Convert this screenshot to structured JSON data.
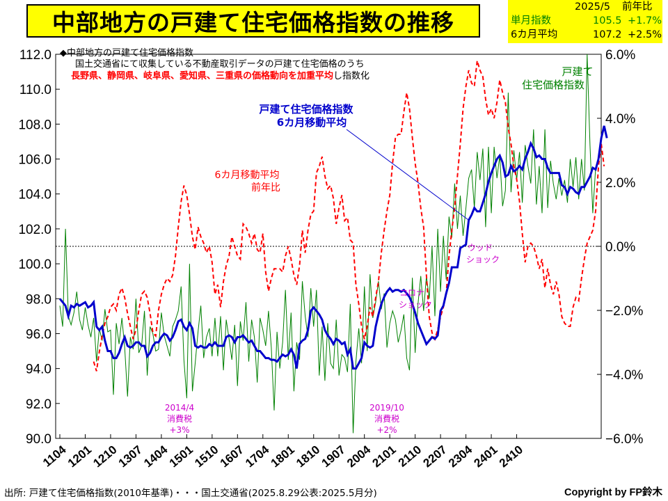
{
  "title": "中部地方の戸建て住宅価格指数の推移",
  "stats": {
    "date": "2025/5",
    "yoy_label": "前年比",
    "monthly_label": "単月指数",
    "monthly_value": "105.5",
    "monthly_yoy": "+1.7%",
    "avg_label": "6カ月平均",
    "avg_value": "107.2",
    "avg_yoy": "+2.5%"
  },
  "notes": {
    "line1": "◆中部地方の戸建て住宅価格指数",
    "line2": "国土交通省にて収集している不動産取引データの戸建て住宅価格のうち",
    "line3_red": "長野県、静岡県、岐阜県、愛知県、三重県の価格動向を加重平均",
    "line3_black": "し指数化"
  },
  "labels": {
    "green_series_1": "戸建て",
    "green_series_2": "住宅価格指数",
    "blue_series_1": "戸建て住宅価格指数",
    "blue_series_2": "6カ月移動平均",
    "red_series_1": "6カ月移動平均",
    "red_series_2": "前年比",
    "wood_1": "ウッド",
    "wood_2": "ショック",
    "corona_1": "コロナ",
    "corona_2": "ショック",
    "tax2014_1": "2014/4",
    "tax2014_2": "消費税",
    "tax2014_3": "+3%",
    "tax2019_1": "2019/10",
    "tax2019_2": "消費税",
    "tax2019_3": "+2%"
  },
  "footer": "出所: 戸建て住宅価格指数(2010年基準)・・・国土交通省(2025.8.29公表:2025.5月分)",
  "copyright": "Copyright by FP鈴木",
  "colors": {
    "title_bg": "#ffff00",
    "monthly": "#008000",
    "moving_avg": "#0000cc",
    "yoy": "#ff0000",
    "annotation": "#cc00cc"
  },
  "chart_data": {
    "type": "line",
    "x_tick_labels": [
      "1104",
      "1201",
      "1210",
      "1307",
      "1404",
      "1501",
      "1510",
      "1607",
      "1704",
      "1801",
      "1810",
      "1907",
      "2004",
      "2101",
      "2110",
      "2207",
      "2304",
      "2401",
      "2410"
    ],
    "x_range": [
      "2011/04",
      "2025/05"
    ],
    "y_left": {
      "range": [
        90.0,
        112.0
      ],
      "ticks": [
        "90.0",
        "92.0",
        "94.0",
        "96.0",
        "98.0",
        "100.0",
        "102.0",
        "104.0",
        "106.0",
        "108.0",
        "110.0",
        "112.0"
      ]
    },
    "y_right": {
      "range": [
        -6.0,
        6.0
      ],
      "ticks": [
        "−6.0%",
        "−4.0%",
        "−2.0%",
        "0.0%",
        "2.0%",
        "4.0%",
        "6.0%"
      ],
      "reference_line": 0.0
    },
    "series": [
      {
        "name": "戸建て住宅価格指数",
        "axis": "left",
        "style": "thin-solid",
        "values": [
          97.6,
          96.4,
          102.0,
          97.0,
          96.5,
          97.2,
          98.4,
          96.8,
          96.2,
          97.5,
          96.5,
          95.8,
          96.9,
          94.4,
          96.3,
          95.6,
          97.4,
          96.1,
          96.2,
          92.5,
          96.6,
          95.4,
          96.9,
          95.2,
          92.4,
          95.8,
          95.1,
          98.0,
          94.9,
          95.3,
          97.3,
          93.6,
          96.4,
          96.0,
          95.0,
          95.1,
          97.2,
          95.9,
          95.3,
          94.7,
          96.4,
          96.8,
          97.3,
          98.7,
          94.5,
          92.3,
          100.0,
          92.7,
          94.3,
          96.1,
          97.6,
          94.6,
          95.8,
          96.3,
          94.7,
          96.9,
          94.7,
          97.0,
          93.9,
          96.8,
          95.7,
          94.5,
          96.5,
          93.0,
          96.7,
          95.6,
          97.8,
          94.4,
          96.8,
          95.8,
          93.2,
          96.9,
          96.2,
          95.3,
          97.3,
          95.2,
          91.6,
          96.1,
          94.0,
          95.5,
          98.5,
          94.5,
          97.2,
          92.7,
          95.5,
          94.5,
          99.0,
          97.0,
          95.8,
          98.6,
          96.4,
          98.5,
          93.6,
          96.4,
          93.3,
          96.6,
          94.3,
          94.0,
          96.8,
          93.6,
          94.8,
          94.6,
          93.8,
          97.7,
          90.3,
          94.4,
          96.3,
          94.3,
          98.7,
          95.0,
          99.4,
          96.9,
          97.8,
          99.0,
          97.4,
          98.3,
          95.2,
          96.6,
          97.3,
          96.8,
          95.5,
          96.2,
          97.1,
          94.6,
          93.9,
          99.2,
          94.9,
          97.7,
          99.3,
          97.3,
          99.3,
          98.0,
          101.0,
          97.0,
          102.0,
          98.4,
          101.6,
          99.1,
          102.7,
          101.5,
          104.6,
          102.0,
          103.9,
          101.6,
          103.2,
          104.9,
          105.4,
          103.2,
          106.4,
          104.8,
          106.6,
          102.1,
          106.7,
          102.9,
          106.7,
          104.9,
          106.2,
          103.3,
          104.2,
          109.8,
          104.1,
          106.5,
          104.8,
          106.4,
          103.5,
          106.8,
          105.6,
          104.6,
          107.7,
          103.4,
          105.6,
          102.9,
          107.7,
          103.2,
          105.9,
          104.6,
          103.7,
          104.9,
          103.9,
          104.8,
          103.5,
          106.0,
          104.4,
          106.1,
          103.7,
          106.0,
          104.2,
          112.0,
          106.8,
          102.9,
          105.5
        ],
        "legend_label_lines": [
          "戸建て",
          "住宅価格指数"
        ]
      },
      {
        "name": "6カ月移動平均",
        "axis": "left",
        "style": "thick-solid",
        "values": [
          98.0,
          97.8,
          97.6,
          97.0,
          97.6,
          97.5,
          97.7,
          97.6,
          97.7,
          97.8,
          97.5,
          97.6,
          97.8,
          96.4,
          96.2,
          96.4,
          95.6,
          95.0,
          95.0,
          94.6,
          94.6,
          94.9,
          95.4,
          95.8,
          95.3,
          95.2,
          95.3,
          95.5,
          95.5,
          95.3,
          95.3,
          94.7,
          94.9,
          95.3,
          95.5,
          95.5,
          95.8,
          96.0,
          95.9,
          95.6,
          95.8,
          96.2,
          96.7,
          96.8,
          96.4,
          96.2,
          96.6,
          96.3,
          95.3,
          95.2,
          95.3,
          95.2,
          95.2,
          95.4,
          95.3,
          95.5,
          95.3,
          95.3,
          95.3,
          95.8,
          95.9,
          95.8,
          95.5,
          95.8,
          95.8,
          95.9,
          95.7,
          95.5,
          95.6,
          95.3,
          95.0,
          95.0,
          94.8,
          94.6,
          94.6,
          94.5,
          94.5,
          94.4,
          94.6,
          94.8,
          94.7,
          94.8,
          95.1,
          94.8,
          94.0,
          95.4,
          95.6,
          95.7,
          96.2,
          97.3,
          97.5,
          97.3,
          97.1,
          96.8,
          96.2,
          95.9,
          95.7,
          95.4,
          95.7,
          95.6,
          95.4,
          95.5,
          94.8,
          95.1,
          94.0,
          94.0,
          94.3,
          94.6,
          95.5,
          95.3,
          95.2,
          95.3,
          96.4,
          97.1,
          97.7,
          98.1,
          98.4,
          98.6,
          98.4,
          98.5,
          98.5,
          98.4,
          98.5,
          98.3,
          98.1,
          97.7,
          97.2,
          96.6,
          96.2,
          95.8,
          95.4,
          95.6,
          95.8,
          95.7,
          95.9,
          97.3,
          97.6,
          98.3,
          98.9,
          99.8,
          99.8,
          99.8,
          100.9,
          101.0,
          101.1,
          102.5,
          102.8,
          103.2,
          103.0,
          103.0,
          103.5,
          104.0,
          104.7,
          105.2,
          105.6,
          106.0,
          106.2,
          105.8,
          105.0,
          105.1,
          105.6,
          105.3,
          105.4,
          105.6,
          105.4,
          106.0,
          106.4,
          106.9,
          106.6,
          106.1,
          106.2,
          106.0,
          106.0,
          105.5,
          105.2,
          105.2,
          105.2,
          105.2,
          104.5,
          104.4,
          104.0,
          104.4,
          104.3,
          104.1,
          104.0,
          104.4,
          104.4,
          104.7,
          105.0,
          105.5,
          105.4,
          106.0,
          107.2,
          107.9,
          107.2
        ],
        "legend_label_lines": [
          "戸建て住宅価格指数",
          "6カ月移動平均"
        ]
      },
      {
        "name": "6カ月移動平均 前年比",
        "axis": "right",
        "style": "dashed",
        "values": [
          null,
          null,
          null,
          null,
          null,
          null,
          null,
          null,
          null,
          null,
          null,
          null,
          -3.6,
          -3.9,
          -3.3,
          -2.8,
          -2.4,
          -2.2,
          -1.9,
          -1.8,
          -2.0,
          -1.5,
          -1.3,
          -1.6,
          -2.1,
          -2.5,
          -2.9,
          -2.6,
          -2.0,
          -1.5,
          -1.4,
          -1.6,
          -2.1,
          -2.7,
          -2.8,
          -2.0,
          -1.5,
          -1.2,
          -1.0,
          -1.1,
          -0.9,
          -0.3,
          0.6,
          1.4,
          1.9,
          1.6,
          1.0,
          0.3,
          -0.1,
          0.6,
          0.3,
          0.1,
          -0.2,
          0.0,
          -0.5,
          -1.5,
          -1.2,
          -1.9,
          -1.1,
          -0.6,
          -0.3,
          0.3,
          0.0,
          -0.3,
          -0.4,
          0.7,
          0.6,
          0.4,
          0.1,
          0.4,
          -0.1,
          -0.2,
          0.4,
          -0.8,
          -1.4,
          -1.0,
          -0.7,
          -0.7,
          -0.7,
          -0.8,
          -0.3,
          0.0,
          -0.4,
          -0.9,
          -1.2,
          -0.6,
          0.5,
          -0.2,
          0.5,
          1.0,
          1.1,
          2.3,
          2.5,
          2.8,
          2.2,
          1.8,
          1.9,
          1.5,
          0.7,
          1.2,
          1.6,
          0.8,
          0.9,
          0.2,
          0.1,
          -1.2,
          -1.8,
          -2.5,
          -2.9,
          -2.5,
          -1.9,
          -2.2,
          -1.6,
          -1.1,
          -0.2,
          0.5,
          1.1,
          1.6,
          2.6,
          3.4,
          3.5,
          3.5,
          4.2,
          4.8,
          4.3,
          3.4,
          2.6,
          2.0,
          1.2,
          0.6,
          -0.9,
          -2.2,
          -2.7,
          -2.9,
          -2.6,
          -2.2,
          -1.9,
          -1.5,
          -0.3,
          0.5,
          1.2,
          2.2,
          3.2,
          4.3,
          5.0,
          5.5,
          5.1,
          5.0,
          5.8,
          5.5,
          5.3,
          4.6,
          4.1,
          4.3,
          4.0,
          4.5,
          5.2,
          4.8,
          4.5,
          3.7,
          3.2,
          2.5,
          2.1,
          1.4,
          0.4,
          -0.5,
          0.0,
          0.1,
          0.0,
          -0.3,
          -0.7,
          -0.4,
          -1.3,
          -0.7,
          -1.2,
          -1.5,
          -1.1,
          -1.5,
          -2.2,
          -2.4,
          -2.5,
          -2.5,
          -1.9,
          -1.6,
          -1.7,
          -1.0,
          -0.4,
          0.1,
          0.3,
          0.5,
          1.1,
          2.5,
          3.2,
          2.5
        ],
        "legend_label_lines": [
          "6カ月移動平均",
          "前年比"
        ]
      }
    ]
  }
}
